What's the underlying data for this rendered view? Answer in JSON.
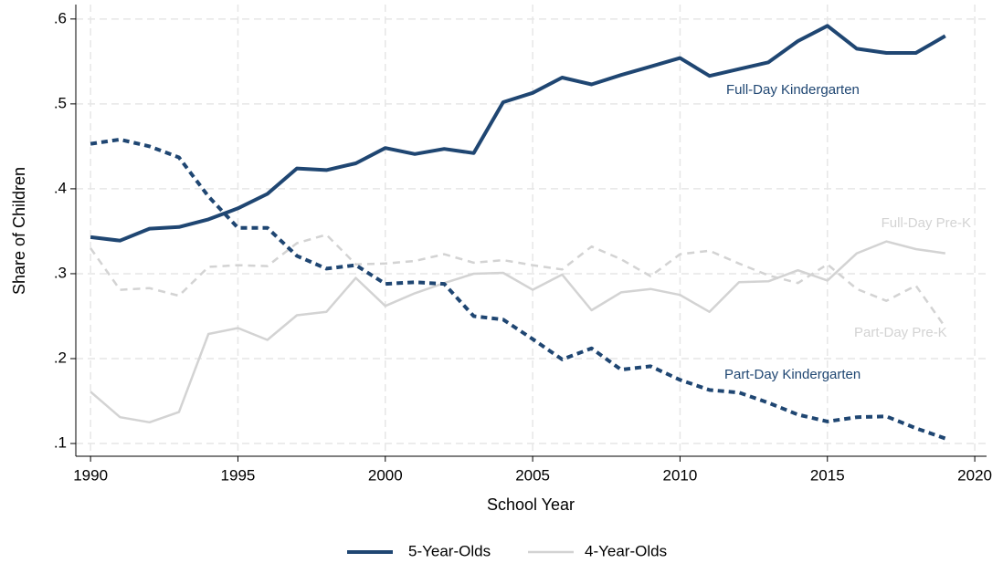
{
  "chart_data": {
    "type": "line",
    "x_label": "School Year",
    "y_label": "Share of Children",
    "x": [
      1990,
      1991,
      1992,
      1993,
      1994,
      1995,
      1996,
      1997,
      1998,
      1999,
      2000,
      2001,
      2002,
      2003,
      2004,
      2005,
      2006,
      2007,
      2008,
      2009,
      2010,
      2011,
      2012,
      2013,
      2014,
      2015,
      2016,
      2017,
      2018,
      2019
    ],
    "series": [
      {
        "name": "Full-Day Kindergarten",
        "color": "#1f4672",
        "dashed": false,
        "values": [
          0.343,
          0.339,
          0.353,
          0.355,
          0.364,
          0.377,
          0.394,
          0.424,
          0.422,
          0.43,
          0.448,
          0.441,
          0.447,
          0.442,
          0.502,
          0.513,
          0.531,
          0.523,
          0.534,
          0.544,
          0.554,
          0.533,
          0.541,
          0.549,
          0.574,
          0.592,
          0.565,
          0.56,
          0.56,
          0.58
        ]
      },
      {
        "name": "Part-Day Kindergarten",
        "color": "#1f4672",
        "dashed": true,
        "values": [
          0.453,
          0.458,
          0.45,
          0.437,
          0.391,
          0.354,
          0.354,
          0.321,
          0.306,
          0.31,
          0.288,
          0.29,
          0.288,
          0.25,
          0.246,
          0.223,
          0.199,
          0.212,
          0.187,
          0.191,
          0.175,
          0.163,
          0.16,
          0.148,
          0.134,
          0.126,
          0.131,
          0.132,
          0.118,
          0.106
        ]
      },
      {
        "name": "Full-Day Pre-K",
        "color": "#d3d3d3",
        "dashed": false,
        "values": [
          0.161,
          0.131,
          0.125,
          0.137,
          0.229,
          0.236,
          0.222,
          0.251,
          0.255,
          0.295,
          0.262,
          0.277,
          0.289,
          0.3,
          0.301,
          0.281,
          0.299,
          0.257,
          0.278,
          0.282,
          0.275,
          0.255,
          0.29,
          0.291,
          0.304,
          0.292,
          0.324,
          0.338,
          0.329,
          0.324
        ]
      },
      {
        "name": "Part-Day Pre-K",
        "color": "#d3d3d3",
        "dashed": true,
        "values": [
          0.33,
          0.281,
          0.283,
          0.274,
          0.308,
          0.31,
          0.309,
          0.336,
          0.346,
          0.311,
          0.312,
          0.315,
          0.323,
          0.313,
          0.316,
          0.31,
          0.305,
          0.332,
          0.317,
          0.297,
          0.323,
          0.327,
          0.312,
          0.298,
          0.289,
          0.311,
          0.282,
          0.268,
          0.286,
          0.237
        ]
      }
    ],
    "legend": [
      {
        "label": "5-Year-Olds",
        "color": "#1f4672"
      },
      {
        "label": "4-Year-Olds",
        "color": "#d3d3d3"
      }
    ],
    "xlim": [
      1989.5,
      2020.4
    ],
    "ylim": [
      0.085,
      0.617
    ],
    "xticks": [
      1990,
      1995,
      2000,
      2005,
      2010,
      2015,
      2020
    ],
    "yticks": [
      {
        "value": 0.1,
        "label": ".1"
      },
      {
        "value": 0.2,
        "label": ".2"
      },
      {
        "value": 0.3,
        "label": ".3"
      },
      {
        "value": 0.4,
        "label": ".4"
      },
      {
        "value": 0.5,
        "label": ".5"
      },
      {
        "value": 0.6,
        "label": ".6"
      }
    ],
    "grid": true
  }
}
